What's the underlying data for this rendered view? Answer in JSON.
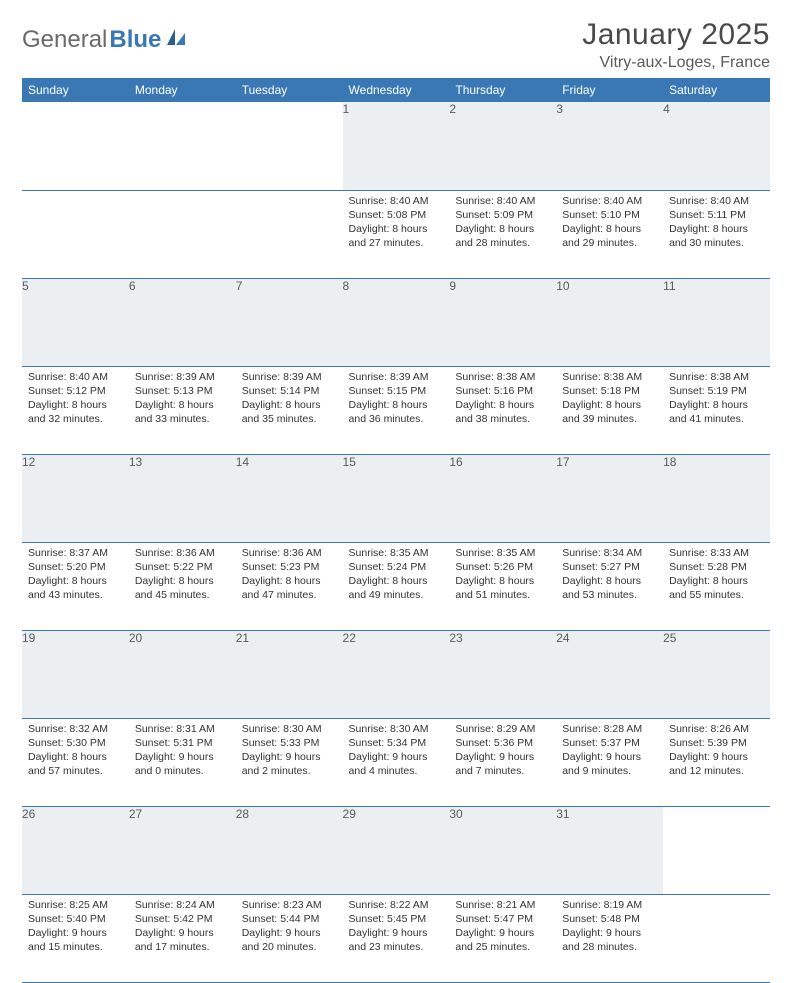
{
  "logo": {
    "text1": "General",
    "text2": "Blue"
  },
  "title": "January 2025",
  "location": "Vitry-aux-Loges, France",
  "colors": {
    "header_bg": "#3a78b5",
    "header_text": "#ffffff",
    "daynum_bg": "#eceff1",
    "daynum_text": "#5a5a5a",
    "border": "#3a78b5",
    "body_text": "#333333",
    "page_bg": "#ffffff",
    "logo_gray": "#6a6a6a",
    "logo_blue": "#3a78b5"
  },
  "weekdays": [
    "Sunday",
    "Monday",
    "Tuesday",
    "Wednesday",
    "Thursday",
    "Friday",
    "Saturday"
  ],
  "weeks": [
    [
      null,
      null,
      null,
      {
        "n": "1",
        "sunrise": "8:40 AM",
        "sunset": "5:08 PM",
        "dl1": "Daylight: 8 hours",
        "dl2": "and 27 minutes."
      },
      {
        "n": "2",
        "sunrise": "8:40 AM",
        "sunset": "5:09 PM",
        "dl1": "Daylight: 8 hours",
        "dl2": "and 28 minutes."
      },
      {
        "n": "3",
        "sunrise": "8:40 AM",
        "sunset": "5:10 PM",
        "dl1": "Daylight: 8 hours",
        "dl2": "and 29 minutes."
      },
      {
        "n": "4",
        "sunrise": "8:40 AM",
        "sunset": "5:11 PM",
        "dl1": "Daylight: 8 hours",
        "dl2": "and 30 minutes."
      }
    ],
    [
      {
        "n": "5",
        "sunrise": "8:40 AM",
        "sunset": "5:12 PM",
        "dl1": "Daylight: 8 hours",
        "dl2": "and 32 minutes."
      },
      {
        "n": "6",
        "sunrise": "8:39 AM",
        "sunset": "5:13 PM",
        "dl1": "Daylight: 8 hours",
        "dl2": "and 33 minutes."
      },
      {
        "n": "7",
        "sunrise": "8:39 AM",
        "sunset": "5:14 PM",
        "dl1": "Daylight: 8 hours",
        "dl2": "and 35 minutes."
      },
      {
        "n": "8",
        "sunrise": "8:39 AM",
        "sunset": "5:15 PM",
        "dl1": "Daylight: 8 hours",
        "dl2": "and 36 minutes."
      },
      {
        "n": "9",
        "sunrise": "8:38 AM",
        "sunset": "5:16 PM",
        "dl1": "Daylight: 8 hours",
        "dl2": "and 38 minutes."
      },
      {
        "n": "10",
        "sunrise": "8:38 AM",
        "sunset": "5:18 PM",
        "dl1": "Daylight: 8 hours",
        "dl2": "and 39 minutes."
      },
      {
        "n": "11",
        "sunrise": "8:38 AM",
        "sunset": "5:19 PM",
        "dl1": "Daylight: 8 hours",
        "dl2": "and 41 minutes."
      }
    ],
    [
      {
        "n": "12",
        "sunrise": "8:37 AM",
        "sunset": "5:20 PM",
        "dl1": "Daylight: 8 hours",
        "dl2": "and 43 minutes."
      },
      {
        "n": "13",
        "sunrise": "8:36 AM",
        "sunset": "5:22 PM",
        "dl1": "Daylight: 8 hours",
        "dl2": "and 45 minutes."
      },
      {
        "n": "14",
        "sunrise": "8:36 AM",
        "sunset": "5:23 PM",
        "dl1": "Daylight: 8 hours",
        "dl2": "and 47 minutes."
      },
      {
        "n": "15",
        "sunrise": "8:35 AM",
        "sunset": "5:24 PM",
        "dl1": "Daylight: 8 hours",
        "dl2": "and 49 minutes."
      },
      {
        "n": "16",
        "sunrise": "8:35 AM",
        "sunset": "5:26 PM",
        "dl1": "Daylight: 8 hours",
        "dl2": "and 51 minutes."
      },
      {
        "n": "17",
        "sunrise": "8:34 AM",
        "sunset": "5:27 PM",
        "dl1": "Daylight: 8 hours",
        "dl2": "and 53 minutes."
      },
      {
        "n": "18",
        "sunrise": "8:33 AM",
        "sunset": "5:28 PM",
        "dl1": "Daylight: 8 hours",
        "dl2": "and 55 minutes."
      }
    ],
    [
      {
        "n": "19",
        "sunrise": "8:32 AM",
        "sunset": "5:30 PM",
        "dl1": "Daylight: 8 hours",
        "dl2": "and 57 minutes."
      },
      {
        "n": "20",
        "sunrise": "8:31 AM",
        "sunset": "5:31 PM",
        "dl1": "Daylight: 9 hours",
        "dl2": "and 0 minutes."
      },
      {
        "n": "21",
        "sunrise": "8:30 AM",
        "sunset": "5:33 PM",
        "dl1": "Daylight: 9 hours",
        "dl2": "and 2 minutes."
      },
      {
        "n": "22",
        "sunrise": "8:30 AM",
        "sunset": "5:34 PM",
        "dl1": "Daylight: 9 hours",
        "dl2": "and 4 minutes."
      },
      {
        "n": "23",
        "sunrise": "8:29 AM",
        "sunset": "5:36 PM",
        "dl1": "Daylight: 9 hours",
        "dl2": "and 7 minutes."
      },
      {
        "n": "24",
        "sunrise": "8:28 AM",
        "sunset": "5:37 PM",
        "dl1": "Daylight: 9 hours",
        "dl2": "and 9 minutes."
      },
      {
        "n": "25",
        "sunrise": "8:26 AM",
        "sunset": "5:39 PM",
        "dl1": "Daylight: 9 hours",
        "dl2": "and 12 minutes."
      }
    ],
    [
      {
        "n": "26",
        "sunrise": "8:25 AM",
        "sunset": "5:40 PM",
        "dl1": "Daylight: 9 hours",
        "dl2": "and 15 minutes."
      },
      {
        "n": "27",
        "sunrise": "8:24 AM",
        "sunset": "5:42 PM",
        "dl1": "Daylight: 9 hours",
        "dl2": "and 17 minutes."
      },
      {
        "n": "28",
        "sunrise": "8:23 AM",
        "sunset": "5:44 PM",
        "dl1": "Daylight: 9 hours",
        "dl2": "and 20 minutes."
      },
      {
        "n": "29",
        "sunrise": "8:22 AM",
        "sunset": "5:45 PM",
        "dl1": "Daylight: 9 hours",
        "dl2": "and 23 minutes."
      },
      {
        "n": "30",
        "sunrise": "8:21 AM",
        "sunset": "5:47 PM",
        "dl1": "Daylight: 9 hours",
        "dl2": "and 25 minutes."
      },
      {
        "n": "31",
        "sunrise": "8:19 AM",
        "sunset": "5:48 PM",
        "dl1": "Daylight: 9 hours",
        "dl2": "and 28 minutes."
      },
      null
    ]
  ],
  "labels": {
    "sunrise": "Sunrise: ",
    "sunset": "Sunset: "
  }
}
